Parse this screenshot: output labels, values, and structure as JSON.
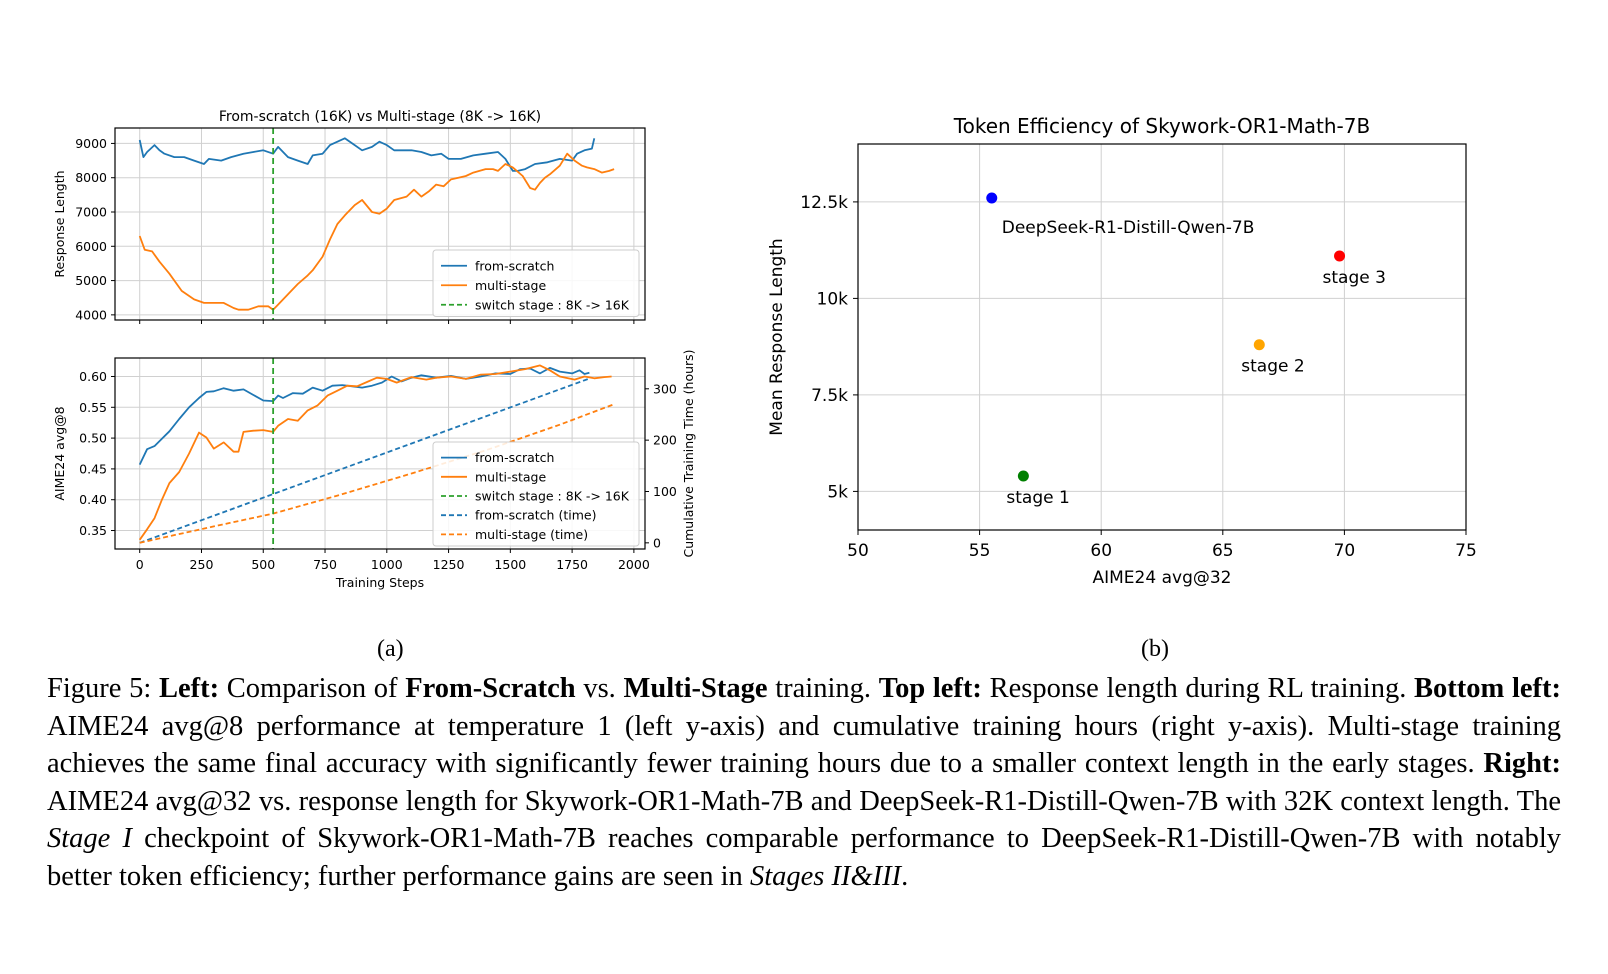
{
  "chart_data": [
    {
      "type": "line",
      "title": "From-scratch (16K) vs Multi-stage (8K -> 16K)",
      "xlabel": "",
      "ylabel": "Response Length",
      "xlim": [
        -100,
        2045
      ],
      "ylim": [
        3850,
        9450
      ],
      "yticks": [
        4000,
        5000,
        6000,
        7000,
        8000,
        9000
      ],
      "grid": true,
      "legend_position": "lower right",
      "switch_step": 540,
      "series": [
        {
          "name": "from-scratch",
          "color": "#1f77b4",
          "x": [
            0,
            15,
            30,
            60,
            80,
            100,
            140,
            180,
            220,
            260,
            280,
            330,
            370,
            420,
            460,
            500,
            540,
            560,
            600,
            640,
            680,
            700,
            740,
            770,
            800,
            830,
            870,
            900,
            940,
            970,
            1000,
            1030,
            1070,
            1100,
            1140,
            1180,
            1220,
            1250,
            1300,
            1350,
            1400,
            1450,
            1480,
            1510,
            1530,
            1560,
            1600,
            1650,
            1700,
            1750,
            1770,
            1800,
            1830,
            1840
          ],
          "y": [
            9100,
            8600,
            8750,
            8950,
            8800,
            8700,
            8600,
            8600,
            8500,
            8400,
            8550,
            8500,
            8600,
            8700,
            8750,
            8800,
            8700,
            8900,
            8600,
            8500,
            8400,
            8650,
            8700,
            8950,
            9050,
            9150,
            8950,
            8800,
            8900,
            9050,
            8950,
            8800,
            8800,
            8800,
            8750,
            8650,
            8700,
            8550,
            8550,
            8650,
            8700,
            8750,
            8550,
            8200,
            8200,
            8250,
            8400,
            8450,
            8550,
            8500,
            8700,
            8800,
            8850,
            9150
          ]
        },
        {
          "name": "multi-stage",
          "color": "#ff7f0e",
          "x": [
            0,
            20,
            50,
            80,
            120,
            170,
            220,
            260,
            300,
            340,
            380,
            400,
            440,
            480,
            520,
            540,
            560,
            600,
            640,
            680,
            700,
            740,
            770,
            800,
            830,
            870,
            900,
            940,
            970,
            1000,
            1030,
            1080,
            1110,
            1140,
            1170,
            1200,
            1230,
            1260,
            1290,
            1320,
            1350,
            1400,
            1430,
            1450,
            1480,
            1510,
            1550,
            1580,
            1600,
            1620,
            1640,
            1660,
            1700,
            1730,
            1760,
            1790,
            1810,
            1840,
            1870,
            1900,
            1920
          ],
          "y": [
            6300,
            5900,
            5850,
            5550,
            5200,
            4700,
            4450,
            4350,
            4350,
            4350,
            4200,
            4150,
            4150,
            4250,
            4250,
            4150,
            4300,
            4600,
            4900,
            5150,
            5300,
            5700,
            6200,
            6650,
            6900,
            7200,
            7350,
            7000,
            6950,
            7100,
            7350,
            7450,
            7650,
            7450,
            7600,
            7800,
            7750,
            7950,
            8000,
            8050,
            8150,
            8250,
            8250,
            8200,
            8400,
            8300,
            8050,
            7700,
            7650,
            7850,
            8000,
            8100,
            8350,
            8700,
            8500,
            8350,
            8300,
            8250,
            8150,
            8200,
            8250
          ]
        }
      ]
    },
    {
      "type": "line",
      "title": "",
      "xlabel": "Training Steps",
      "ylabel": "AIME24 avg@8",
      "y2label": "Cumulative Training Time (hours)",
      "xlim": [
        -100,
        2045
      ],
      "ylim": [
        0.32,
        0.63
      ],
      "y2lim": [
        -12,
        360
      ],
      "xticks": [
        0,
        250,
        500,
        750,
        1000,
        1250,
        1500,
        1750,
        2000
      ],
      "yticks": [
        0.35,
        0.4,
        0.45,
        0.5,
        0.55,
        0.6
      ],
      "y2ticks": [
        0,
        100,
        200,
        300
      ],
      "grid": true,
      "legend_position": "lower right",
      "switch_step": 540,
      "series": [
        {
          "name": "from-scratch",
          "color": "#1f77b4",
          "axis": "left",
          "x": [
            0,
            30,
            60,
            90,
            120,
            160,
            200,
            240,
            270,
            300,
            340,
            380,
            420,
            460,
            500,
            540,
            560,
            580,
            620,
            660,
            700,
            740,
            780,
            820,
            860,
            900,
            940,
            980,
            1020,
            1060,
            1100,
            1140,
            1200,
            1260,
            1320,
            1380,
            1440,
            1500,
            1540,
            1580,
            1620,
            1660,
            1700,
            1750,
            1780,
            1800,
            1820
          ],
          "y": [
            0.457,
            0.482,
            0.487,
            0.499,
            0.511,
            0.531,
            0.55,
            0.565,
            0.575,
            0.576,
            0.581,
            0.577,
            0.579,
            0.57,
            0.561,
            0.56,
            0.569,
            0.565,
            0.573,
            0.572,
            0.582,
            0.577,
            0.585,
            0.586,
            0.584,
            0.582,
            0.585,
            0.59,
            0.6,
            0.592,
            0.598,
            0.602,
            0.598,
            0.601,
            0.596,
            0.6,
            0.605,
            0.604,
            0.612,
            0.613,
            0.605,
            0.614,
            0.608,
            0.605,
            0.61,
            0.604,
            0.606
          ]
        },
        {
          "name": "multi-stage",
          "color": "#ff7f0e",
          "axis": "left",
          "x": [
            0,
            30,
            60,
            90,
            120,
            160,
            200,
            240,
            270,
            300,
            340,
            380,
            400,
            420,
            460,
            500,
            540,
            560,
            600,
            640,
            680,
            720,
            760,
            800,
            840,
            880,
            920,
            960,
            1000,
            1040,
            1100,
            1160,
            1200,
            1260,
            1320,
            1380,
            1440,
            1500,
            1560,
            1620,
            1660,
            1700,
            1760,
            1800,
            1840,
            1880,
            1910
          ],
          "y": [
            0.335,
            0.352,
            0.37,
            0.4,
            0.427,
            0.445,
            0.475,
            0.509,
            0.501,
            0.483,
            0.493,
            0.478,
            0.478,
            0.51,
            0.512,
            0.513,
            0.51,
            0.52,
            0.531,
            0.528,
            0.545,
            0.553,
            0.569,
            0.577,
            0.585,
            0.584,
            0.591,
            0.598,
            0.596,
            0.59,
            0.599,
            0.595,
            0.598,
            0.6,
            0.596,
            0.603,
            0.604,
            0.608,
            0.612,
            0.618,
            0.61,
            0.6,
            0.595,
            0.6,
            0.597,
            0.599,
            0.6
          ]
        },
        {
          "name": "from-scratch (time)",
          "color": "#1f77b4",
          "axis": "right",
          "dashed": true,
          "x": [
            0,
            1820
          ],
          "y": [
            0,
            320
          ]
        },
        {
          "name": "multi-stage (time)",
          "color": "#ff7f0e",
          "axis": "right",
          "dashed": true,
          "x": [
            0,
            300,
            540,
            800,
            1100,
            1400,
            1700,
            1920
          ],
          "y": [
            0,
            32,
            57,
            92,
            135,
            180,
            230,
            270
          ]
        }
      ]
    },
    {
      "type": "scatter",
      "title": "Token Efficiency of Skywork-OR1-Math-7B",
      "xlabel": "AIME24 avg@32",
      "ylabel": "Mean Response Length",
      "xlim": [
        50,
        75
      ],
      "ylim": [
        4000,
        14000
      ],
      "xticks": [
        50,
        55,
        60,
        65,
        70,
        75
      ],
      "yticks": [
        5000,
        7500,
        10000,
        12500
      ],
      "ytick_labels": [
        "5k",
        "7.5k",
        "10k",
        "12.5k"
      ],
      "grid": true,
      "points": [
        {
          "label": "DeepSeek-R1-Distill-Qwen-7B",
          "x": 55.5,
          "y": 12600,
          "color": "#0000ff"
        },
        {
          "label": "stage 1",
          "x": 56.8,
          "y": 5400,
          "color": "#008000"
        },
        {
          "label": "stage 2",
          "x": 66.5,
          "y": 8800,
          "color": "#ffa500"
        },
        {
          "label": "stage 3",
          "x": 69.8,
          "y": 11100,
          "color": "#ff0000"
        }
      ]
    }
  ],
  "panel_labels": {
    "a": "(a)",
    "b": "(b)"
  },
  "legend_switch_label": "switch stage : 8K -> 16K",
  "caption": {
    "prefix": "Figure 5: ",
    "left_label": "Left:",
    "t1": " Comparison of ",
    "from_scratch": "From-Scratch",
    "t2": " vs. ",
    "multi_stage": "Multi-Stage",
    "t3": " training. ",
    "top_left_label": "Top left:",
    "t4": " Response length during RL training. ",
    "bottom_left_label": "Bottom left:",
    "t5": " AIME24 avg@8 performance at temperature 1 (left y-axis) and cumulative training hours (right y-axis). Multi-stage training achieves the same final accuracy with significantly fewer training hours due to a smaller context length in the early stages. ",
    "right_label": "Right:",
    "t6": " AIME24 avg@32 vs. response length for Skywork-OR1-Math-7B and DeepSeek-R1-Distill-Qwen-7B with 32K context length. The ",
    "stage_i": "Stage I",
    "t7": " checkpoint of Skywork-OR1-Math-7B reaches comparable performance to DeepSeek-R1-Distill-Qwen-7B with notably better token efficiency; further performance gains are seen in ",
    "stages_ii_iii": "Stages II&III",
    "t8": "."
  }
}
